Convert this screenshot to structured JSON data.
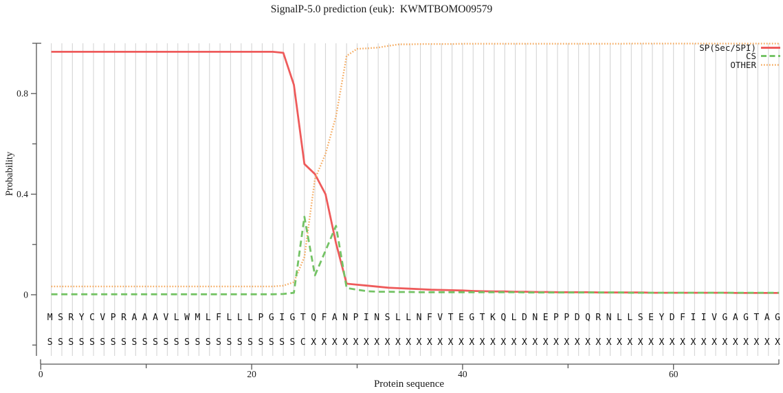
{
  "chart_data": {
    "type": "line",
    "title": "SignalP-5.0 prediction (euk):  KWMTBOMO09579",
    "xlabel": "Protein sequence",
    "ylabel": "Probability",
    "xlim": [
      0,
      70.5
    ],
    "ylim": [
      0,
      1
    ],
    "x_major_ticks": [
      0,
      20,
      40,
      60
    ],
    "x_minor_ticks": [
      10,
      30,
      50
    ],
    "y_major_ticks": [
      {
        "v": 0,
        "label": "0"
      },
      {
        "v": 0.4,
        "label": "0.4"
      },
      {
        "v": 0.8,
        "label": "0.8"
      }
    ],
    "y_minor_ticks": [
      -0.2,
      0.2,
      0.6,
      1.0
    ],
    "grid": "vertical-line-per-residue",
    "legend_position": "top-right",
    "colors": {
      "grid": "#d4d4d4",
      "axis": "#555555",
      "text": "#1a1a1a"
    },
    "sequence": "MSRYCVPRAAAVLWMLFLLLPGIGTQFANPINSLLNFVTEGTKQLDNEPPDQRNLLSEYDFIIVGAGTAG",
    "annotation": "SSSSSSSSSSSSSSSSSSSSSSSSCXXXXXXXXXXXXXXXXXXXXXXXXXXXXXXXXXXXXXXXXXXXXX",
    "series": [
      {
        "name": "SP(Sec/SPI)",
        "style": "solid",
        "color": "#ee5b5b",
        "values": [
          0.966,
          0.966,
          0.966,
          0.966,
          0.966,
          0.966,
          0.966,
          0.966,
          0.966,
          0.966,
          0.966,
          0.966,
          0.966,
          0.966,
          0.966,
          0.966,
          0.966,
          0.966,
          0.966,
          0.966,
          0.966,
          0.966,
          0.962,
          0.835,
          0.52,
          0.48,
          0.4,
          0.205,
          0.044,
          0.04,
          0.036,
          0.032,
          0.028,
          0.026,
          0.024,
          0.022,
          0.02,
          0.019,
          0.018,
          0.017,
          0.015,
          0.014,
          0.013,
          0.013,
          0.012,
          0.012,
          0.011,
          0.011,
          0.01,
          0.01,
          0.01,
          0.01,
          0.009,
          0.009,
          0.009,
          0.009,
          0.009,
          0.008,
          0.008,
          0.008,
          0.008,
          0.008,
          0.008,
          0.008,
          0.008,
          0.007,
          0.007,
          0.007,
          0.007,
          0.007
        ]
      },
      {
        "name": "CS",
        "style": "dashed",
        "color": "#74c365",
        "values": [
          0.002,
          0.002,
          0.002,
          0.002,
          0.002,
          0.002,
          0.002,
          0.002,
          0.002,
          0.002,
          0.002,
          0.002,
          0.002,
          0.002,
          0.002,
          0.002,
          0.002,
          0.002,
          0.002,
          0.002,
          0.002,
          0.002,
          0.003,
          0.008,
          0.31,
          0.077,
          0.175,
          0.274,
          0.027,
          0.02,
          0.014,
          0.012,
          0.012,
          0.011,
          0.011,
          0.01,
          0.01,
          0.01,
          0.01,
          0.01,
          0.01,
          0.01,
          0.01,
          0.01,
          0.01,
          0.009,
          0.009,
          0.009,
          0.009,
          0.009,
          0.009,
          0.009,
          0.009,
          0.009,
          0.009,
          0.008,
          0.008,
          0.008,
          0.008,
          0.008,
          0.008,
          0.008,
          0.008,
          0.008,
          0.008,
          0.008,
          0.008,
          0.008,
          0.008,
          0.008
        ]
      },
      {
        "name": "OTHER",
        "style": "dotted",
        "color": "#f5a95c",
        "values": [
          0.033,
          0.033,
          0.033,
          0.033,
          0.033,
          0.033,
          0.033,
          0.033,
          0.033,
          0.033,
          0.033,
          0.033,
          0.033,
          0.033,
          0.033,
          0.033,
          0.033,
          0.033,
          0.033,
          0.033,
          0.033,
          0.033,
          0.036,
          0.05,
          0.15,
          0.46,
          0.56,
          0.71,
          0.95,
          0.978,
          0.98,
          0.983,
          0.99,
          0.996,
          0.996,
          0.997,
          0.997,
          0.997,
          0.997,
          0.998,
          0.998,
          0.998,
          0.998,
          0.998,
          0.998,
          0.998,
          0.998,
          0.998,
          0.998,
          0.998,
          0.998,
          0.998,
          0.998,
          0.998,
          0.998,
          0.999,
          0.999,
          0.999,
          0.999,
          0.999,
          0.999,
          0.999,
          0.999,
          0.999,
          0.999,
          0.999,
          0.999,
          0.999,
          0.999,
          0.999
        ]
      }
    ]
  }
}
